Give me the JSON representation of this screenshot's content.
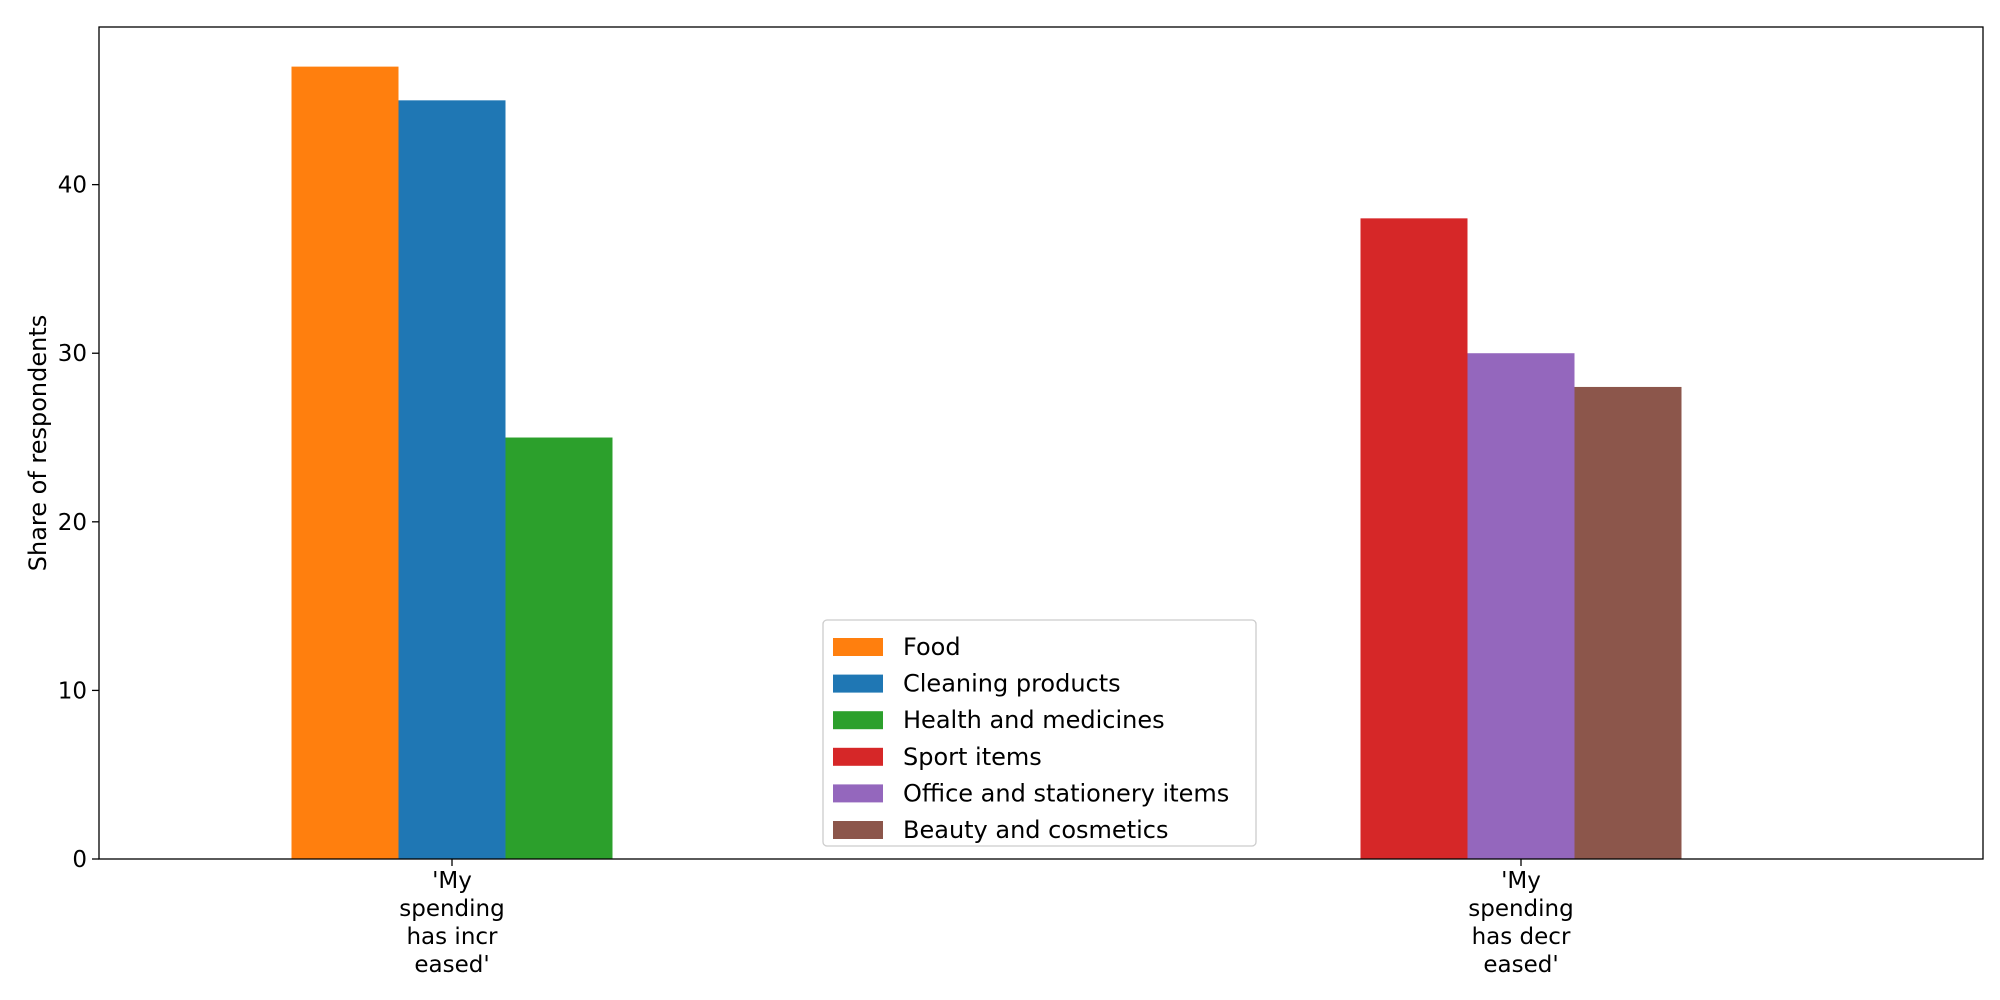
{
  "chart_data": {
    "type": "bar",
    "title": "",
    "xlabel": "",
    "ylabel": "Share of respondents",
    "ylim": [
      0,
      49.35
    ],
    "yticks": [
      0,
      10,
      20,
      30,
      40
    ],
    "grid": false,
    "legend_position": "bottom-center",
    "categories": [
      [
        "'My",
        "spending",
        "has incr",
        "eased'"
      ],
      [
        "'My",
        "spending",
        "has decr",
        "eased'"
      ]
    ],
    "series": [
      {
        "name": "Food",
        "color": "#ff7f0e",
        "values": [
          47,
          0
        ]
      },
      {
        "name": "Cleaning products",
        "color": "#1f77b4",
        "values": [
          45,
          0
        ]
      },
      {
        "name": "Health and medicines",
        "color": "#2ca02c",
        "values": [
          25,
          0
        ]
      },
      {
        "name": "Sport items",
        "color": "#d62728",
        "values": [
          0,
          38
        ]
      },
      {
        "name": "Office and stationery items",
        "color": "#9467bd",
        "values": [
          0,
          30
        ]
      },
      {
        "name": "Beauty and cosmetics",
        "color": "#8c564b",
        "values": [
          0,
          28
        ]
      }
    ]
  }
}
